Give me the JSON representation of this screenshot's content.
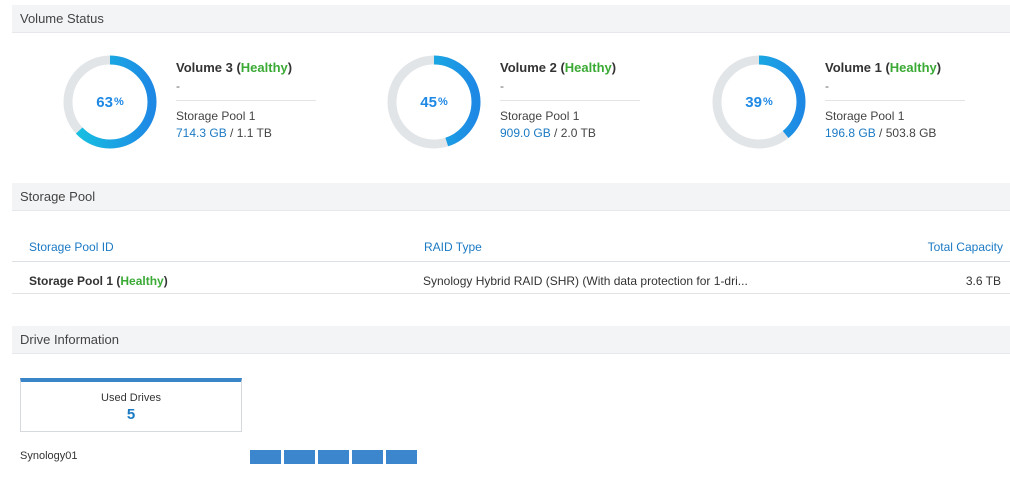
{
  "volume_status": {
    "header": "Volume Status",
    "volumes": [
      {
        "name": "Volume 3",
        "status": "Healthy",
        "percent": 63,
        "dash": "-",
        "pool": "Storage Pool 1",
        "used": "714.3 GB",
        "total": "1.1 TB"
      },
      {
        "name": "Volume 2",
        "status": "Healthy",
        "percent": 45,
        "dash": "-",
        "pool": "Storage Pool 1",
        "used": "909.0 GB",
        "total": "2.0 TB"
      },
      {
        "name": "Volume 1",
        "status": "Healthy",
        "percent": 39,
        "dash": "-",
        "pool": "Storage Pool 1",
        "used": "196.8 GB",
        "total": "503.8 GB"
      }
    ]
  },
  "storage_pool": {
    "header": "Storage Pool",
    "columns": {
      "id": "Storage Pool ID",
      "raid": "RAID Type",
      "capacity": "Total Capacity"
    },
    "rows": [
      {
        "id": "Storage Pool 1",
        "status": "Healthy",
        "raid": "Synology Hybrid RAID (SHR) (With data protection for 1-dri...",
        "capacity": "3.6 TB"
      }
    ]
  },
  "drive_information": {
    "header": "Drive Information",
    "used_drives_label": "Used Drives",
    "used_drives_value": "5",
    "host": "Synology01",
    "drive_count": 5
  },
  "colors": {
    "healthy": "#3aaa35",
    "accent_blue": "#1b7ac4",
    "donut_track": "#e2e5e8",
    "donut_start": "#16c6e0",
    "donut_end": "#1e88e5",
    "drive_slot": "#3b86cc"
  }
}
